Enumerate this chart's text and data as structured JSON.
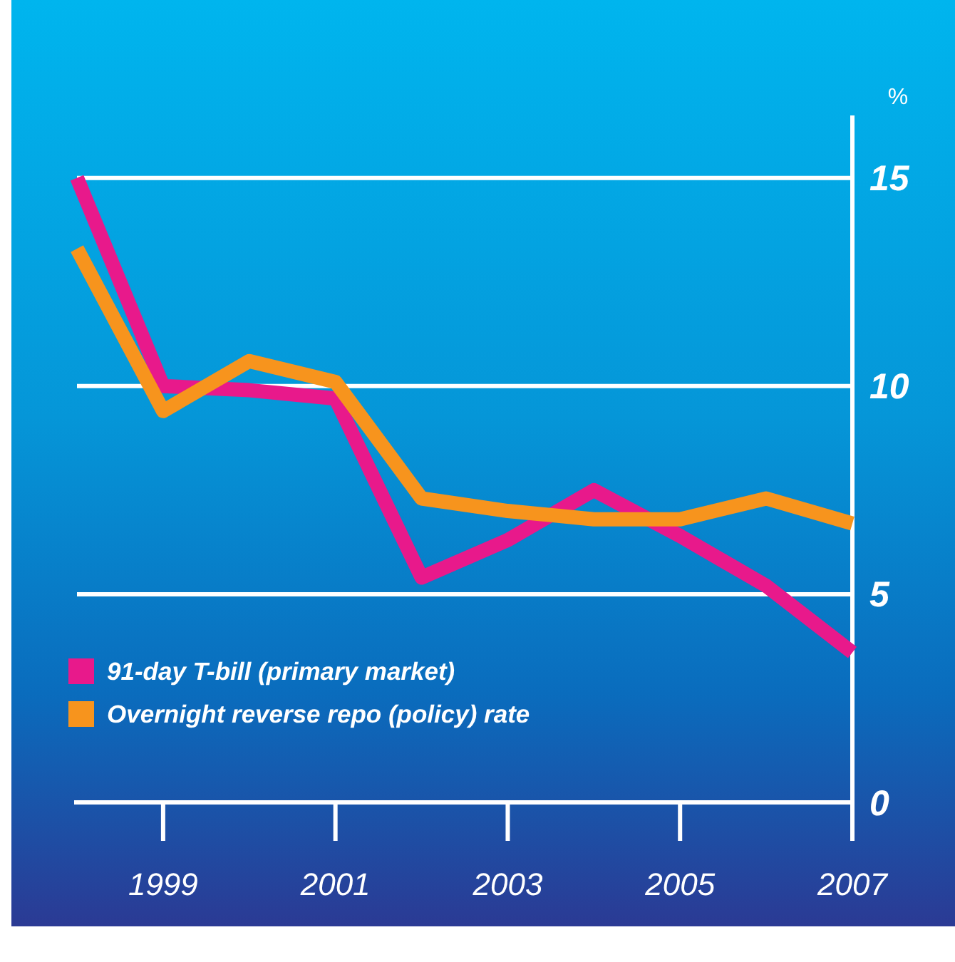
{
  "chart_data": {
    "type": "line",
    "ylabel": "%",
    "x": [
      1998,
      1999,
      2000,
      2001,
      2002,
      2003,
      2004,
      2005,
      2006,
      2007
    ],
    "xlim": [
      1998,
      2007
    ],
    "xticks": [
      1999,
      2001,
      2003,
      2005,
      2007
    ],
    "ylim": [
      0,
      16.5
    ],
    "yticks": [
      0,
      5,
      10,
      15
    ],
    "grid": "y",
    "legend": "bottom left",
    "line_style": "solid",
    "series": [
      {
        "name": "91-day T-bill (primary market)",
        "color": "#e8198b",
        "values": [
          15.0,
          10.0,
          9.9,
          9.7,
          5.4,
          6.3,
          7.5,
          6.4,
          5.2,
          3.6
        ]
      },
      {
        "name": "Overnight reverse repo (policy) rate",
        "color": "#f7941d",
        "values": [
          13.3,
          9.4,
          10.6,
          10.1,
          7.3,
          7.0,
          6.8,
          6.8,
          7.3,
          6.7
        ]
      }
    ]
  }
}
